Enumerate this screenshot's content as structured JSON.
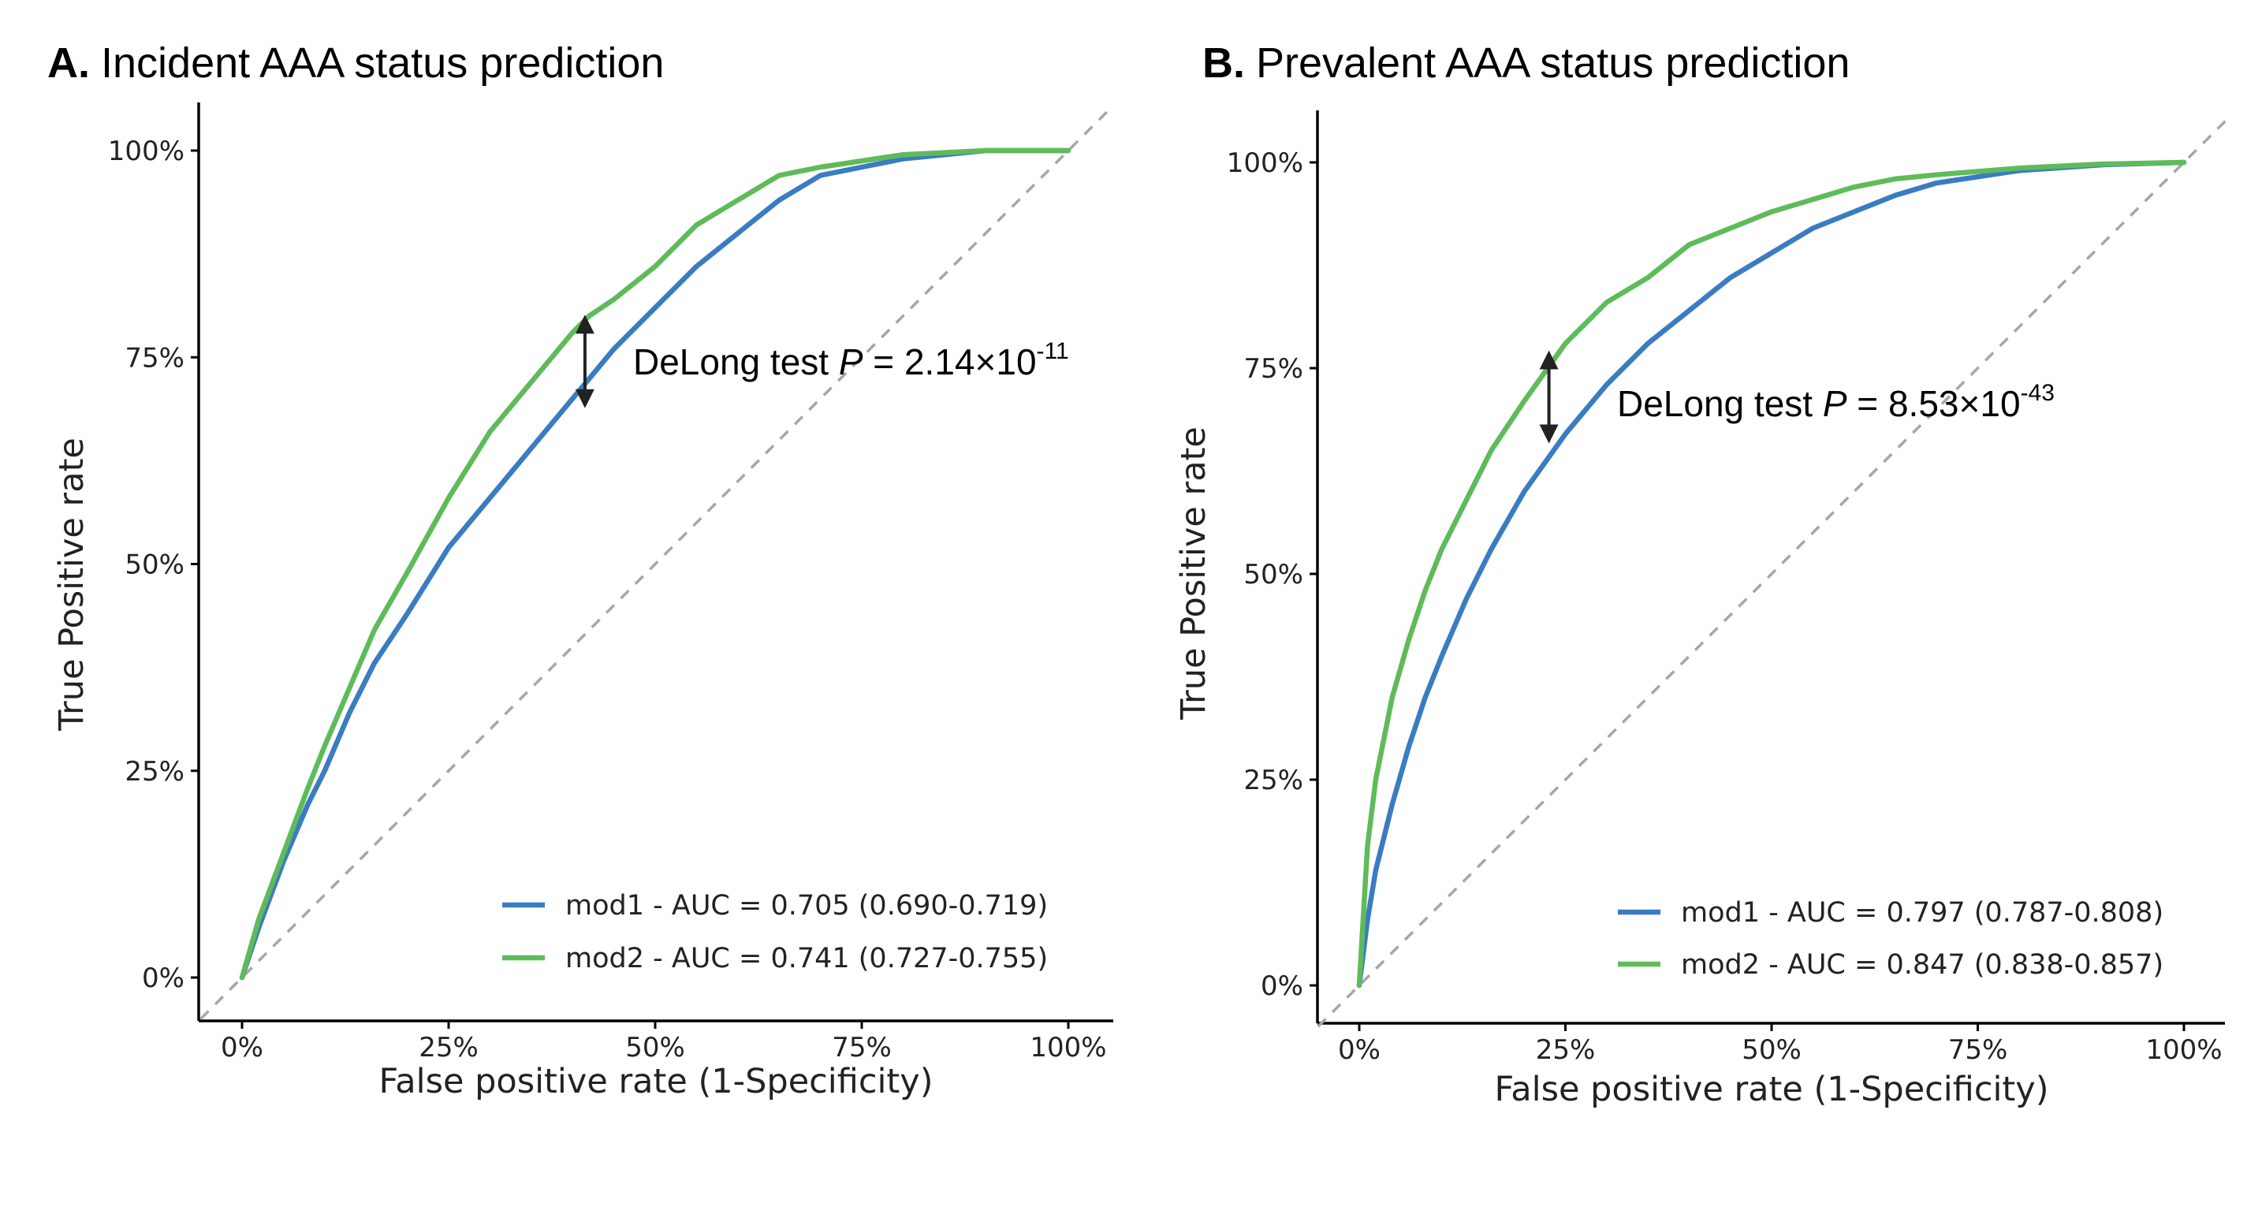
{
  "colors": {
    "mod1": "#3a7cc2",
    "mod2": "#5fbb5a",
    "diagonal": "#a6a6a6",
    "arrow": "#222222"
  },
  "chart_data": [
    {
      "type": "line",
      "panel_letter": "A.",
      "title": "Incident AAA status prediction",
      "xlabel": "False positive rate (1-Specificity)",
      "ylabel": "True Positive rate",
      "xlim": [
        0,
        1
      ],
      "ylim": [
        0,
        1
      ],
      "xticks": [
        "0%",
        "25%",
        "50%",
        "75%",
        "100%"
      ],
      "yticks": [
        "0%",
        "25%",
        "50%",
        "75%",
        "100%"
      ],
      "grid": false,
      "legend_position": "bottom-right",
      "annotation": {
        "prefix": "DeLong test ",
        "stat": "P",
        "equals": " = ",
        "mantissa": "2.14×10",
        "exponent": "-11",
        "x": 0.415,
        "y_low": 0.7,
        "y_high": 0.79
      },
      "series": [
        {
          "name": "mod1",
          "label": "mod1 - AUC = 0.705 (0.690-0.719)",
          "x": [
            0,
            0.02,
            0.05,
            0.08,
            0.1,
            0.13,
            0.16,
            0.2,
            0.25,
            0.3,
            0.35,
            0.4,
            0.45,
            0.5,
            0.55,
            0.6,
            0.65,
            0.7,
            0.8,
            0.9,
            1.0
          ],
          "y": [
            0,
            0.06,
            0.14,
            0.21,
            0.25,
            0.32,
            0.38,
            0.44,
            0.52,
            0.58,
            0.64,
            0.7,
            0.76,
            0.81,
            0.86,
            0.9,
            0.94,
            0.97,
            0.99,
            1.0,
            1.0
          ]
        },
        {
          "name": "mod2",
          "label": "mod2 - AUC = 0.741 (0.727-0.755)",
          "x": [
            0,
            0.02,
            0.05,
            0.08,
            0.1,
            0.13,
            0.16,
            0.2,
            0.25,
            0.3,
            0.35,
            0.4,
            0.42,
            0.45,
            0.5,
            0.55,
            0.6,
            0.65,
            0.7,
            0.8,
            0.9,
            1.0
          ],
          "y": [
            0,
            0.07,
            0.15,
            0.23,
            0.28,
            0.35,
            0.42,
            0.49,
            0.58,
            0.66,
            0.72,
            0.78,
            0.8,
            0.82,
            0.86,
            0.91,
            0.94,
            0.97,
            0.98,
            0.995,
            1.0,
            1.0
          ]
        }
      ]
    },
    {
      "type": "line",
      "panel_letter": "B.",
      "title": "Prevalent AAA status prediction",
      "xlabel": "False positive rate (1-Specificity)",
      "ylabel": "True Positive rate",
      "xlim": [
        0,
        1
      ],
      "ylim": [
        0,
        1
      ],
      "xticks": [
        "0%",
        "25%",
        "50%",
        "75%",
        "100%"
      ],
      "yticks": [
        "0%",
        "25%",
        "50%",
        "75%",
        "100%"
      ],
      "grid": false,
      "legend_position": "bottom-right",
      "annotation": {
        "prefix": "DeLong test ",
        "stat": "P",
        "equals": " = ",
        "mantissa": "8.53×10",
        "exponent": "-43",
        "x": 0.23,
        "y_low": 0.67,
        "y_high": 0.76
      },
      "series": [
        {
          "name": "mod1",
          "label": "mod1 - AUC = 0.797 (0.787-0.808)",
          "x": [
            0,
            0.01,
            0.02,
            0.04,
            0.06,
            0.08,
            0.1,
            0.13,
            0.16,
            0.2,
            0.25,
            0.3,
            0.35,
            0.4,
            0.45,
            0.5,
            0.55,
            0.6,
            0.65,
            0.7,
            0.8,
            0.9,
            1.0
          ],
          "y": [
            0,
            0.08,
            0.14,
            0.22,
            0.29,
            0.35,
            0.4,
            0.47,
            0.53,
            0.6,
            0.67,
            0.73,
            0.78,
            0.82,
            0.86,
            0.89,
            0.92,
            0.94,
            0.96,
            0.975,
            0.99,
            0.997,
            1.0
          ]
        },
        {
          "name": "mod2",
          "label": "mod2 - AUC = 0.847 (0.838-0.857)",
          "x": [
            0,
            0.01,
            0.02,
            0.04,
            0.06,
            0.08,
            0.1,
            0.13,
            0.16,
            0.2,
            0.25,
            0.3,
            0.35,
            0.4,
            0.45,
            0.5,
            0.55,
            0.6,
            0.65,
            0.7,
            0.8,
            0.9,
            1.0
          ],
          "y": [
            0,
            0.17,
            0.25,
            0.35,
            0.42,
            0.48,
            0.53,
            0.59,
            0.65,
            0.71,
            0.78,
            0.83,
            0.86,
            0.9,
            0.92,
            0.94,
            0.955,
            0.97,
            0.98,
            0.985,
            0.993,
            0.998,
            1.0
          ]
        }
      ]
    }
  ]
}
